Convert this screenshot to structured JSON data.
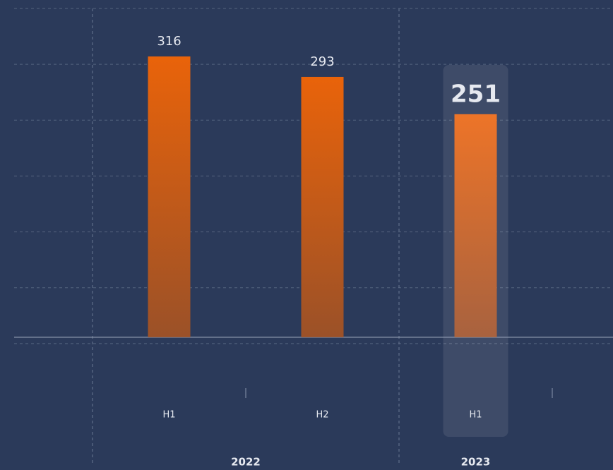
{
  "chart_data": {
    "type": "bar",
    "categories": [
      "H1",
      "H2",
      "H1"
    ],
    "category_groups": [
      "2022",
      "2022",
      "2023"
    ],
    "values": [
      316,
      293,
      251
    ],
    "highlight": 2,
    "ylim": [
      -70,
      370
    ],
    "grid": true
  }
}
